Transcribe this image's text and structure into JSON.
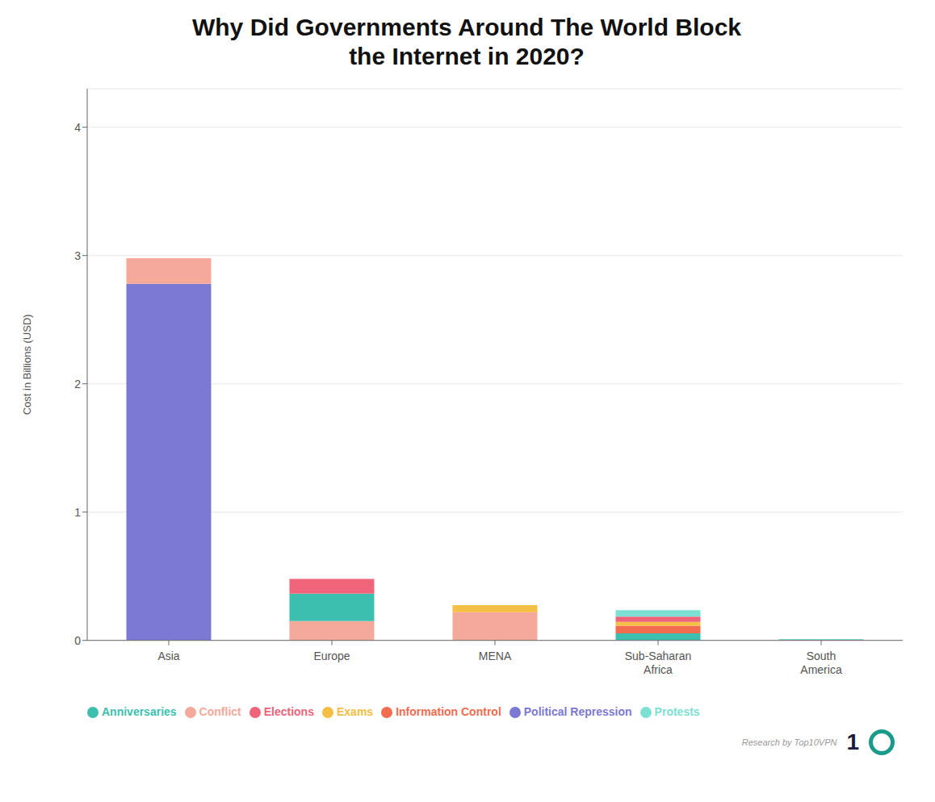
{
  "chart_data": {
    "type": "bar",
    "stacked": true,
    "title": "Why Did Governments Around The World Block\nthe Internet in 2020?",
    "y_label": "Cost in Billions (USD)",
    "categories": [
      "Asia",
      "Europe",
      "MENA",
      "Sub-Saharan\nAfrica",
      "South\nAmerica"
    ],
    "series": [
      {
        "name": "Political Repression",
        "color": "#7B79D4",
        "values": [
          2.78,
          0.0,
          0.0,
          0.0,
          0.0
        ]
      },
      {
        "name": "Conflict",
        "color": "#F5A99A",
        "values": [
          0.2,
          0.15,
          0.22,
          0.0,
          0.0
        ]
      },
      {
        "name": "Anniversaries",
        "color": "#3DBFB0",
        "values": [
          0.0,
          0.215,
          0.0,
          0.055,
          0.0
        ]
      },
      {
        "name": "Information Control",
        "color": "#F26C4F",
        "values": [
          0.0,
          0.0,
          0.0,
          0.06,
          0.005
        ]
      },
      {
        "name": "Exams",
        "color": "#F5BE45",
        "values": [
          0.0,
          0.0,
          0.055,
          0.03,
          0.0
        ]
      },
      {
        "name": "Elections",
        "color": "#F0647A",
        "values": [
          0.0,
          0.115,
          0.0,
          0.04,
          0.0
        ]
      },
      {
        "name": "Protests",
        "color": "#7DE0D2",
        "values": [
          0.0,
          0.0,
          0.0,
          0.05,
          0.005
        ]
      }
    ],
    "ylim": [
      0,
      4.3
    ],
    "yticks": [
      0,
      1,
      2,
      3,
      4
    ],
    "grid": true,
    "legend": "bottom left",
    "annotations": [
      "Research by Top10VPN",
      "1"
    ]
  }
}
